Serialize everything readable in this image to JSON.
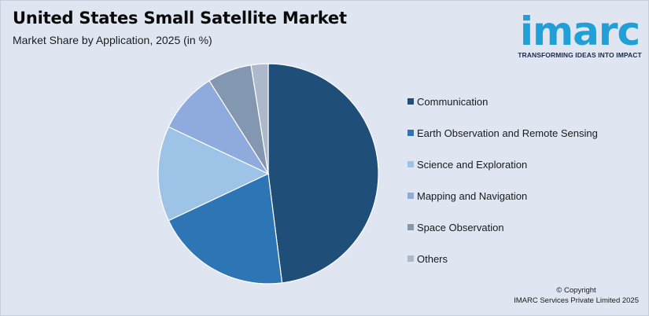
{
  "header": {
    "title": "United States Small Satellite Market",
    "subtitle": "Market Share by Application, 2025 (in %)"
  },
  "logo": {
    "wordmark": "imarc",
    "tagline": "TRANSFORMING IDEAS INTO IMPACT",
    "color": "#20a0d6"
  },
  "chart_data": {
    "type": "pie",
    "title": "United States Small Satellite Market",
    "subtitle": "Market Share by Application, 2025 (in %)",
    "legend_position": "right",
    "start": "top",
    "direction": "clockwise",
    "categories": [
      "Communication",
      "Earth Observation and Remote Sensing",
      "Science and Exploration",
      "Mapping and Navigation",
      "Space Observation",
      "Others"
    ],
    "values": [
      48,
      20,
      14,
      9,
      6.5,
      2.5
    ],
    "colors": [
      "#1f4e79",
      "#2e75b6",
      "#9dc3e6",
      "#8faadc",
      "#8497b0",
      "#adb9ca"
    ]
  },
  "footer": {
    "copyright_line1": "© Copyright",
    "copyright_line2": "IMARC Services Private Limited 2025"
  }
}
